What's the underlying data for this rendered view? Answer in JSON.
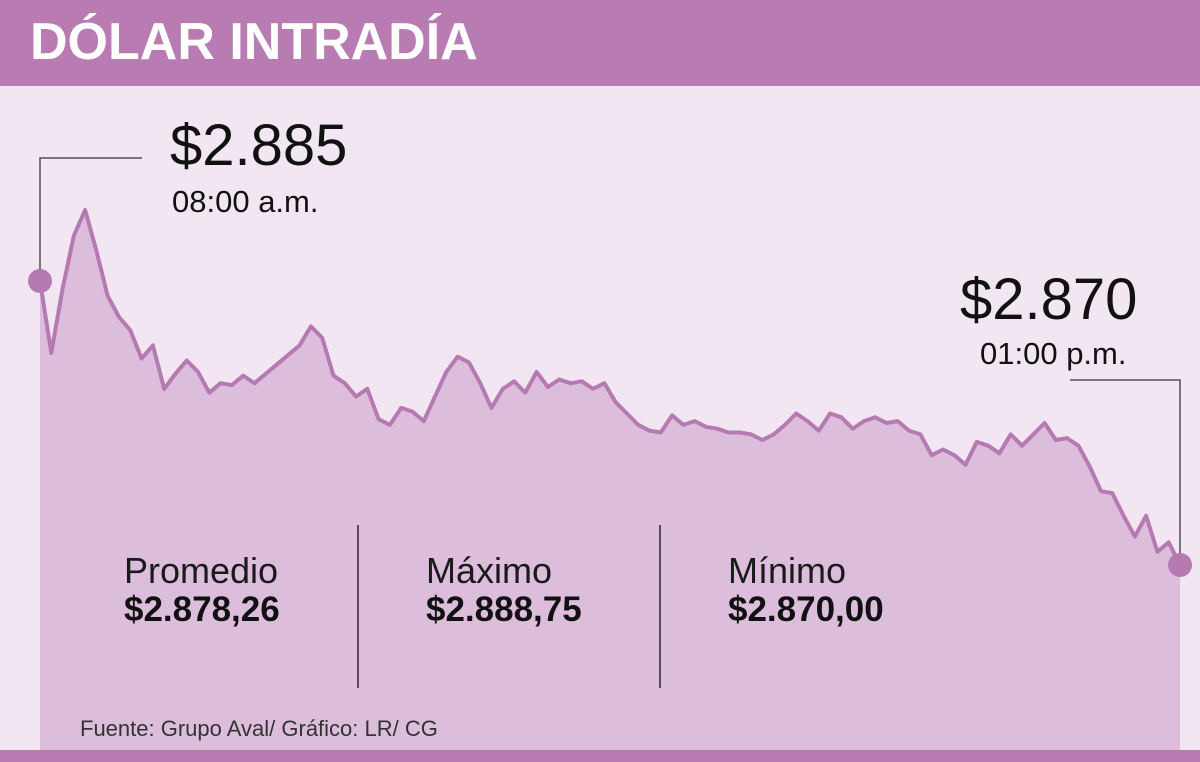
{
  "header": {
    "title": "DÓLAR INTRADÍA"
  },
  "colors": {
    "header_bg": "#b87cb3",
    "page_bg": "#f3e6f3",
    "area_fill": "#dcbedc",
    "line": "#b67ab2"
  },
  "callouts": {
    "open": {
      "value": "$2.885",
      "time": "08:00 a.m."
    },
    "close": {
      "value": "$2.870",
      "time": "01:00 p.m."
    }
  },
  "stats": [
    {
      "label": "Promedio",
      "value": "$2.878,26"
    },
    {
      "label": "Máximo",
      "value": "$2.888,75"
    },
    {
      "label": "Mínimo",
      "value": "$2.870,00"
    }
  ],
  "source": "Fuente: Grupo Aval/ Gráfico: LR/ CG",
  "chart_data": {
    "type": "area",
    "title": "DÓLAR INTRADÍA",
    "xlabel": "",
    "ylabel": "",
    "x_range": [
      "08:00 a.m.",
      "01:00 p.m."
    ],
    "ylim": [
      2870,
      2888.75
    ],
    "grid": false,
    "series": [
      {
        "values": [
          2885.0,
          2881.2,
          2884.6,
          2887.4,
          2888.75,
          2886.6,
          2884.2,
          2883.1,
          2882.4,
          2880.9,
          2881.6,
          2879.3,
          2880.1,
          2880.8,
          2880.2,
          2879.1,
          2879.6,
          2879.5,
          2880.0,
          2879.6,
          2880.1,
          2880.6,
          2881.1,
          2881.6,
          2882.6,
          2882.0,
          2880.0,
          2879.6,
          2878.9,
          2879.3,
          2877.7,
          2877.4,
          2878.3,
          2878.1,
          2877.6,
          2878.9,
          2880.2,
          2881.0,
          2880.7,
          2879.6,
          2878.3,
          2879.3,
          2879.7,
          2879.1,
          2880.2,
          2879.4,
          2879.8,
          2879.6,
          2879.7,
          2879.3,
          2879.6,
          2878.6,
          2878.0,
          2877.4,
          2877.1,
          2877.0,
          2877.9,
          2877.4,
          2877.6,
          2877.3,
          2877.2,
          2877.0,
          2877.0,
          2876.9,
          2876.6,
          2876.9,
          2877.4,
          2878.0,
          2877.6,
          2877.1,
          2878.0,
          2877.8,
          2877.2,
          2877.6,
          2877.8,
          2877.5,
          2877.6,
          2877.1,
          2876.9,
          2875.8,
          2876.1,
          2875.8,
          2875.3,
          2876.5,
          2876.3,
          2875.9,
          2876.9,
          2876.3,
          2876.9,
          2877.5,
          2876.6,
          2876.7,
          2876.3,
          2875.2,
          2873.9,
          2873.8,
          2872.6,
          2871.5,
          2872.6,
          2870.7,
          2871.2,
          2870.0
        ]
      }
    ]
  }
}
